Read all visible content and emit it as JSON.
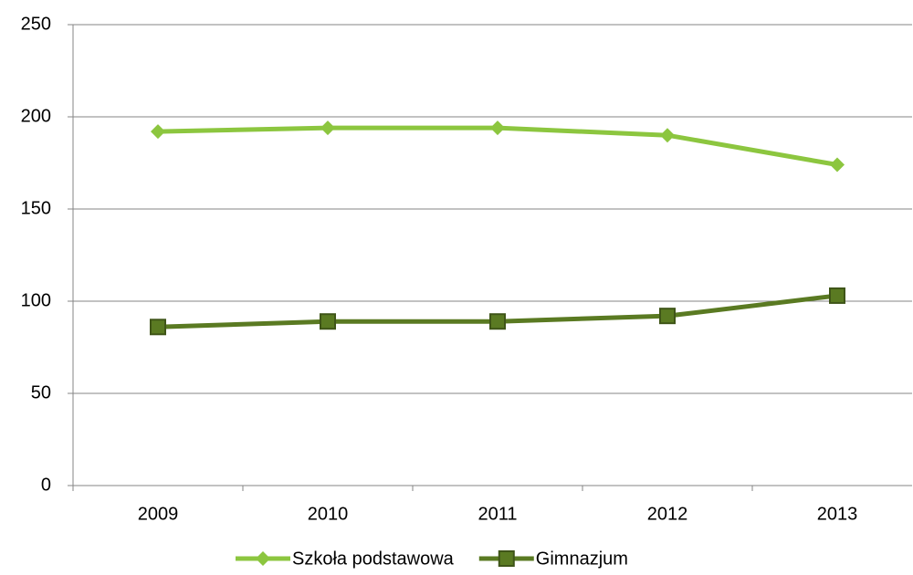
{
  "chart_data": {
    "type": "line",
    "categories": [
      "2009",
      "2010",
      "2011",
      "2012",
      "2013"
    ],
    "series": [
      {
        "name": "Szkoła podstawowa",
        "color": "#8cc63f",
        "marker": "diamond",
        "values": [
          192,
          194,
          194,
          190,
          174
        ]
      },
      {
        "name": "Gimnazjum",
        "color": "#5a7a22",
        "marker": "square",
        "values": [
          86,
          89,
          89,
          92,
          103
        ]
      }
    ],
    "ylim": [
      0,
      250
    ],
    "yticks": [
      0,
      50,
      100,
      150,
      200,
      250
    ],
    "grid": true,
    "legend": "bottom"
  }
}
